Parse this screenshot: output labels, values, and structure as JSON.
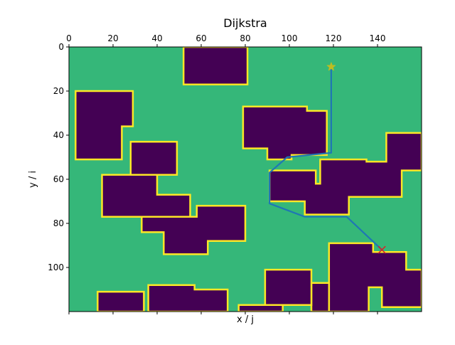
{
  "chart_data": {
    "type": "heatmap",
    "title": "Dijkstra",
    "xlabel": "x / j",
    "ylabel": "y / i",
    "xlim": [
      0,
      160
    ],
    "ylim": [
      120,
      0
    ],
    "x_ticks": [
      0,
      20,
      40,
      60,
      80,
      100,
      120,
      140
    ],
    "y_ticks": [
      0,
      20,
      40,
      60,
      80,
      100
    ],
    "x_ticks_position": "top",
    "grid": false,
    "colors": {
      "free": "#35b779",
      "obstacle": "#440154",
      "inflation": "#fde725",
      "path": "#1f77b4",
      "start_marker": "#bcbd22",
      "goal_marker": "#d62728"
    },
    "obstacles": [
      [
        [
          52,
          0
        ],
        [
          81,
          0
        ],
        [
          81,
          17
        ],
        [
          52,
          17
        ]
      ],
      [
        [
          3,
          20
        ],
        [
          29,
          20
        ],
        [
          29,
          36
        ],
        [
          24,
          36
        ],
        [
          24,
          51
        ],
        [
          3,
          51
        ]
      ],
      [
        [
          28,
          43
        ],
        [
          49,
          43
        ],
        [
          49,
          58
        ],
        [
          28,
          58
        ]
      ],
      [
        [
          15,
          58
        ],
        [
          40,
          58
        ],
        [
          40,
          67
        ],
        [
          55,
          67
        ],
        [
          55,
          77
        ],
        [
          15,
          77
        ]
      ],
      [
        [
          33,
          77
        ],
        [
          58,
          77
        ],
        [
          58,
          72
        ],
        [
          80,
          72
        ],
        [
          80,
          88
        ],
        [
          63,
          88
        ],
        [
          63,
          94
        ],
        [
          43,
          94
        ],
        [
          43,
          84
        ],
        [
          33,
          84
        ]
      ],
      [
        [
          79,
          27
        ],
        [
          108,
          27
        ],
        [
          108,
          29
        ],
        [
          117,
          29
        ],
        [
          117,
          49
        ],
        [
          101,
          49
        ],
        [
          101,
          51
        ],
        [
          90,
          51
        ],
        [
          90,
          46
        ],
        [
          79,
          46
        ]
      ],
      [
        [
          91,
          56
        ],
        [
          112,
          56
        ],
        [
          112,
          62
        ],
        [
          114,
          62
        ],
        [
          114,
          51
        ],
        [
          135,
          51
        ],
        [
          135,
          52
        ],
        [
          144,
          52
        ],
        [
          144,
          39
        ],
        [
          160,
          39
        ],
        [
          160,
          56
        ],
        [
          151,
          56
        ],
        [
          151,
          68
        ],
        [
          127,
          68
        ],
        [
          127,
          76
        ],
        [
          107,
          76
        ],
        [
          107,
          70
        ],
        [
          91,
          70
        ]
      ],
      [
        [
          118,
          89
        ],
        [
          138,
          89
        ],
        [
          138,
          93
        ],
        [
          153,
          93
        ],
        [
          153,
          101
        ],
        [
          160,
          101
        ],
        [
          160,
          118
        ],
        [
          142,
          118
        ],
        [
          142,
          109
        ],
        [
          136,
          109
        ],
        [
          136,
          120
        ],
        [
          118,
          120
        ]
      ],
      [
        [
          110,
          107
        ],
        [
          118,
          107
        ],
        [
          118,
          120
        ],
        [
          110,
          120
        ]
      ],
      [
        [
          89,
          101
        ],
        [
          110,
          101
        ],
        [
          110,
          117
        ],
        [
          89,
          117
        ]
      ],
      [
        [
          36,
          108
        ],
        [
          57,
          108
        ],
        [
          57,
          110
        ],
        [
          72,
          110
        ],
        [
          72,
          120
        ],
        [
          36,
          120
        ]
      ],
      [
        [
          13,
          111
        ],
        [
          34,
          111
        ],
        [
          34,
          120
        ],
        [
          13,
          120
        ]
      ],
      [
        [
          77,
          117
        ],
        [
          97,
          117
        ],
        [
          97,
          120
        ],
        [
          77,
          120
        ]
      ]
    ],
    "path": [
      [
        119,
        9
      ],
      [
        119,
        48
      ],
      [
        109,
        49
      ],
      [
        99,
        50
      ],
      [
        91,
        57
      ],
      [
        91,
        71
      ],
      [
        107,
        77
      ],
      [
        126,
        77
      ],
      [
        142,
        92
      ]
    ],
    "start": [
      119,
      9
    ],
    "goal": [
      142,
      92
    ]
  }
}
